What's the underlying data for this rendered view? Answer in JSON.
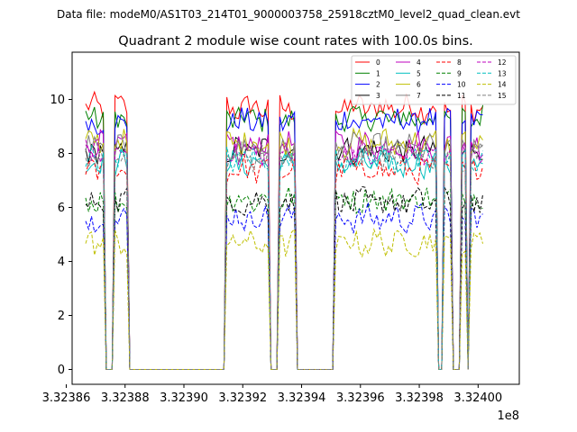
{
  "figure": {
    "suptitle": "Data file: modeM0/AS1T03_214T01_9000003758_25918cztM0_level2_quad_clean.evt"
  },
  "chart_data": {
    "type": "line",
    "title": "Quadrant 2 module wise count rates with 100.0s bins.",
    "xlabel": "",
    "ylabel": "",
    "x_offset_label": "1e8",
    "xlim": [
      332386200,
      332401400
    ],
    "ylim": [
      -0.55,
      11.75
    ],
    "x_ticks": [
      {
        "value": 332386000,
        "label": "3.32386"
      },
      {
        "value": 332388000,
        "label": "3.32388"
      },
      {
        "value": 332390000,
        "label": "3.32390"
      },
      {
        "value": 332392000,
        "label": "3.32392"
      },
      {
        "value": 332394000,
        "label": "3.32394"
      },
      {
        "value": 332396000,
        "label": "3.32396"
      },
      {
        "value": 332398000,
        "label": "3.32398"
      },
      {
        "value": 332400000,
        "label": "3.32400"
      }
    ],
    "y_ticks": [
      {
        "value": 0,
        "label": "0"
      },
      {
        "value": 2,
        "label": "2"
      },
      {
        "value": 4,
        "label": "4"
      },
      {
        "value": 6,
        "label": "6"
      },
      {
        "value": 8,
        "label": "8"
      },
      {
        "value": 10,
        "label": "10"
      }
    ],
    "grid": false,
    "legend": {
      "location": "top-right",
      "columns": 4
    },
    "time_bins": {
      "start": 332386660,
      "step": 100,
      "count": 136
    },
    "active_segments": [
      [
        0,
        6
      ],
      [
        10,
        14
      ],
      [
        48,
        62
      ],
      [
        66,
        71
      ],
      [
        85,
        119
      ],
      [
        122,
        124
      ],
      [
        128,
        129
      ],
      [
        131,
        135
      ]
    ],
    "series": [
      {
        "name": "0",
        "color": "#ff0000",
        "dash": "solid",
        "mean": 9.7
      },
      {
        "name": "1",
        "color": "#008000",
        "dash": "solid",
        "mean": 9.3
      },
      {
        "name": "2",
        "color": "#0000ff",
        "dash": "solid",
        "mean": 9.2
      },
      {
        "name": "3",
        "color": "#000000",
        "dash": "solid",
        "mean": 8.1
      },
      {
        "name": "4",
        "color": "#bf00bf",
        "dash": "solid",
        "mean": 8.3
      },
      {
        "name": "5",
        "color": "#00bfbf",
        "dash": "solid",
        "mean": 7.6
      },
      {
        "name": "6",
        "color": "#bfbf00",
        "dash": "solid",
        "mean": 8.4
      },
      {
        "name": "7",
        "color": "#808080",
        "dash": "solid",
        "mean": 8.2
      },
      {
        "name": "8",
        "color": "#ff0000",
        "dash": "dashed",
        "mean": 7.4
      },
      {
        "name": "9",
        "color": "#008000",
        "dash": "dashed",
        "mean": 6.3
      },
      {
        "name": "10",
        "color": "#0000ff",
        "dash": "dashed",
        "mean": 5.6
      },
      {
        "name": "11",
        "color": "#000000",
        "dash": "dashed",
        "mean": 6.2
      },
      {
        "name": "12",
        "color": "#bf00bf",
        "dash": "dashed",
        "mean": 8.0
      },
      {
        "name": "13",
        "color": "#00bfbf",
        "dash": "dashed",
        "mean": 7.8
      },
      {
        "name": "14",
        "color": "#bfbf00",
        "dash": "dashed",
        "mean": 4.7
      },
      {
        "name": "15",
        "color": "#808080",
        "dash": "dashed",
        "mean": 7.9
      }
    ]
  }
}
